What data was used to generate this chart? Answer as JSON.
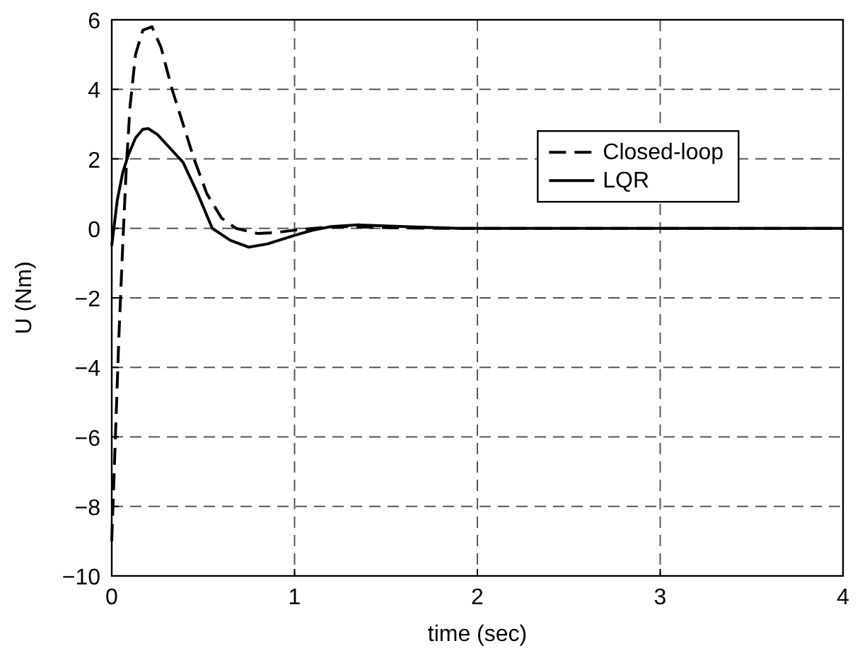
{
  "chart_data": {
    "type": "line",
    "xlabel": "time (sec)",
    "ylabel": "U (Nm)",
    "xlim": [
      0,
      4
    ],
    "xticks": [
      0,
      1,
      2,
      3,
      4
    ],
    "ylim": [
      -10,
      6
    ],
    "yticks": [
      -10,
      -8,
      -6,
      -4,
      -2,
      0,
      2,
      4,
      6
    ],
    "grid": true,
    "legend": "right",
    "series": [
      {
        "name": "Closed-loop",
        "color": "#000000",
        "line_style": "dashed",
        "x": [
          0,
          0.02,
          0.04,
          0.06,
          0.08,
          0.1,
          0.13,
          0.17,
          0.22,
          0.27,
          0.33,
          0.39,
          0.45,
          0.52,
          0.6,
          0.68,
          0.8,
          0.9,
          1.0,
          1.15,
          1.3,
          1.5,
          1.8,
          2.2,
          3,
          4
        ],
        "values": [
          -9,
          -6,
          -3,
          -0.5,
          1.8,
          3.5,
          5,
          5.7,
          5.8,
          5.2,
          4,
          3,
          2,
          1,
          0.3,
          0,
          -0.15,
          -0.12,
          -0.05,
          0.02,
          0.05,
          0.02,
          0,
          0,
          0,
          0
        ]
      },
      {
        "name": "LQR",
        "color": "#000000",
        "line_style": "solid",
        "x": [
          0,
          0.03,
          0.06,
          0.09,
          0.13,
          0.17,
          0.2,
          0.25,
          0.32,
          0.39,
          0.47,
          0.55,
          0.65,
          0.75,
          0.85,
          1.0,
          1.1,
          1.2,
          1.35,
          1.6,
          1.9,
          2.2,
          3,
          4
        ],
        "values": [
          -0.5,
          0.8,
          1.6,
          2.1,
          2.6,
          2.85,
          2.87,
          2.7,
          2.3,
          1.9,
          1,
          0,
          -0.35,
          -0.54,
          -0.45,
          -0.2,
          -0.05,
          0.05,
          0.1,
          0.05,
          0,
          0,
          0,
          0
        ]
      }
    ]
  }
}
